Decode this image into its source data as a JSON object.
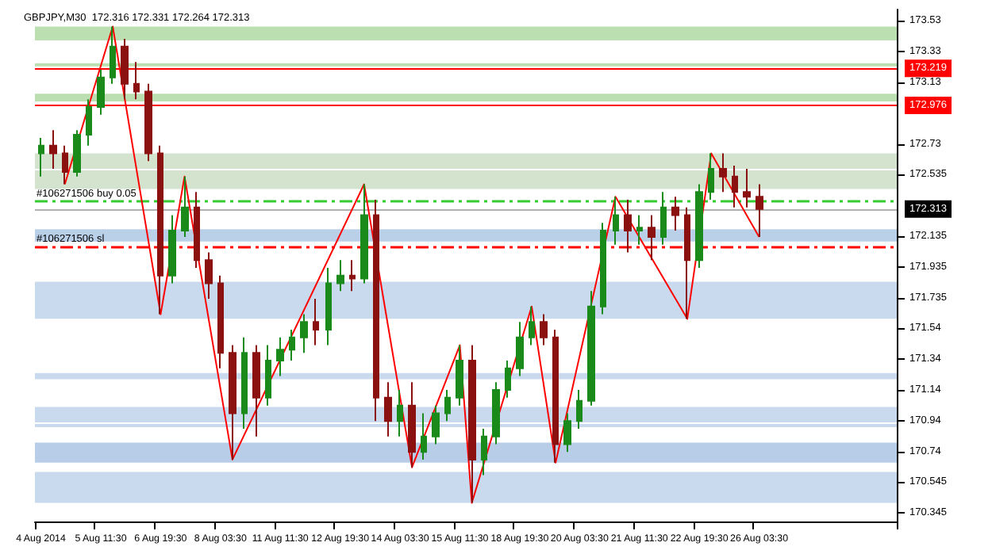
{
  "chart_data": {
    "type": "candlestick",
    "title": "GBPJPY,M30  172.316 172.331 172.264 172.313",
    "categories": [
      "4 Aug 2014",
      null,
      null,
      null,
      null,
      "5 Aug 11:30",
      null,
      null,
      null,
      null,
      "6 Aug 19:30",
      null,
      null,
      null,
      null,
      "8 Aug 03:30",
      null,
      null,
      null,
      null,
      "11 Aug 11:30",
      null,
      null,
      null,
      null,
      "12 Aug 19:30",
      null,
      null,
      null,
      null,
      "14 Aug 03:30",
      null,
      null,
      null,
      null,
      "15 Aug 11:30",
      null,
      null,
      null,
      null,
      "18 Aug 19:30",
      null,
      null,
      null,
      null,
      "20 Aug 03:30",
      null,
      null,
      null,
      null,
      "21 Aug 11:30",
      null,
      null,
      null,
      null,
      "22 Aug 19:30",
      null,
      null,
      null,
      null,
      "26 Aug 03:30",
      null,
      null,
      null,
      null,
      null,
      null,
      null,
      null,
      null,
      null,
      null
    ],
    "ohlc": [
      [
        172.67,
        172.77,
        172.52,
        172.72
      ],
      [
        172.72,
        172.82,
        172.57,
        172.67
      ],
      [
        172.67,
        172.72,
        172.47,
        172.55
      ],
      [
        172.55,
        172.82,
        172.52,
        172.79
      ],
      [
        172.79,
        173.02,
        172.72,
        172.97
      ],
      [
        172.97,
        173.21,
        172.92,
        173.16
      ],
      [
        173.16,
        173.49,
        173.12,
        173.36
      ],
      [
        173.36,
        173.41,
        173.02,
        173.12
      ],
      [
        173.12,
        173.26,
        173.02,
        173.07
      ],
      [
        173.07,
        173.12,
        172.62,
        172.67
      ],
      [
        172.67,
        172.72,
        171.63,
        171.88
      ],
      [
        171.88,
        172.27,
        171.83,
        172.17
      ],
      [
        172.17,
        172.52,
        172.13,
        172.32
      ],
      [
        172.32,
        172.42,
        171.93,
        171.98
      ],
      [
        171.98,
        172.03,
        171.73,
        171.83
      ],
      [
        171.83,
        171.88,
        171.28,
        171.38
      ],
      [
        171.38,
        171.43,
        170.69,
        170.99
      ],
      [
        170.99,
        171.48,
        170.89,
        171.38
      ],
      [
        171.38,
        171.43,
        170.84,
        171.09
      ],
      [
        171.09,
        171.43,
        171.04,
        171.33
      ],
      [
        171.33,
        171.48,
        171.23,
        171.4
      ],
      [
        171.4,
        171.53,
        171.33,
        171.48
      ],
      [
        171.48,
        171.63,
        171.38,
        171.58
      ],
      [
        171.58,
        171.73,
        171.43,
        171.53
      ],
      [
        171.53,
        171.93,
        171.43,
        171.83
      ],
      [
        171.83,
        171.98,
        171.78,
        171.88
      ],
      [
        171.88,
        171.98,
        171.78,
        171.86
      ],
      [
        171.86,
        172.47,
        171.83,
        172.27
      ],
      [
        172.27,
        172.37,
        170.94,
        171.09
      ],
      [
        171.09,
        171.19,
        170.84,
        170.94
      ],
      [
        170.94,
        171.14,
        170.84,
        171.04
      ],
      [
        171.04,
        171.19,
        170.64,
        170.74
      ],
      [
        170.74,
        170.99,
        170.69,
        170.84
      ],
      [
        170.84,
        171.04,
        170.79,
        170.99
      ],
      [
        170.99,
        171.14,
        170.94,
        171.09
      ],
      [
        171.09,
        171.43,
        171.04,
        171.33
      ],
      [
        171.33,
        171.43,
        170.41,
        170.69
      ],
      [
        170.69,
        170.89,
        170.59,
        170.84
      ],
      [
        170.84,
        171.19,
        170.79,
        171.14
      ],
      [
        171.14,
        171.33,
        171.09,
        171.28
      ],
      [
        171.28,
        171.58,
        171.23,
        171.48
      ],
      [
        171.48,
        171.68,
        171.43,
        171.58
      ],
      [
        171.58,
        171.63,
        171.43,
        171.48
      ],
      [
        171.48,
        171.53,
        170.67,
        170.79
      ],
      [
        170.79,
        170.99,
        170.74,
        170.94
      ],
      [
        170.94,
        171.14,
        170.89,
        171.07
      ],
      [
        171.07,
        171.78,
        171.04,
        171.68
      ],
      [
        171.68,
        172.22,
        171.63,
        172.17
      ],
      [
        172.17,
        172.39,
        172.08,
        172.27
      ],
      [
        172.27,
        172.37,
        172.03,
        172.17
      ],
      [
        172.17,
        172.27,
        172.08,
        172.19
      ],
      [
        172.19,
        172.27,
        171.98,
        172.13
      ],
      [
        172.13,
        172.42,
        172.08,
        172.32
      ],
      [
        172.32,
        172.39,
        172.17,
        172.27
      ],
      [
        172.27,
        172.32,
        171.6,
        171.98
      ],
      [
        171.98,
        172.47,
        171.93,
        172.42
      ],
      [
        172.42,
        172.67,
        172.37,
        172.57
      ],
      [
        172.57,
        172.67,
        172.42,
        172.52
      ],
      [
        172.52,
        172.59,
        172.32,
        172.42
      ],
      [
        172.42,
        172.57,
        172.32,
        172.39
      ],
      [
        172.39,
        172.47,
        172.13,
        172.31
      ],
      null,
      null,
      null,
      null,
      null,
      null,
      null,
      null,
      null,
      null,
      null
    ],
    "colors": [
      "#1a8a1a",
      "#8b1010",
      "#8b1010",
      "#1a8a1a",
      "#1a8a1a",
      "#1a8a1a",
      "#1a8a1a",
      "#8b1010",
      "#8b1010",
      "#8b1010",
      "#8b1010",
      "#1a8a1a",
      "#1a8a1a",
      "#8b1010",
      "#8b1010",
      "#8b1010",
      "#8b1010",
      "#1a8a1a",
      "#8b1010",
      "#1a8a1a",
      "#1a8a1a",
      "#1a8a1a",
      "#1a8a1a",
      "#8b1010",
      "#1a8a1a",
      "#1a8a1a",
      "#8b1010",
      "#1a8a1a",
      "#8b1010",
      "#8b1010",
      "#1a8a1a",
      "#8b1010",
      "#1a8a1a",
      "#1a8a1a",
      "#1a8a1a",
      "#1a8a1a",
      "#8b1010",
      "#1a8a1a",
      "#1a8a1a",
      "#1a8a1a",
      "#1a8a1a",
      "#1a8a1a",
      "#8b1010",
      "#8b1010",
      "#1a8a1a",
      "#1a8a1a",
      "#1a8a1a",
      "#1a8a1a",
      "#1a8a1a",
      "#8b1010",
      "#1a8a1a",
      "#8b1010",
      "#1a8a1a",
      "#8b1010",
      "#8b1010",
      "#1a8a1a",
      "#1a8a1a",
      "#8b1010",
      "#8b1010",
      "#8b1010",
      "#8b1010",
      null,
      null,
      null,
      null,
      null,
      null,
      null,
      null,
      null,
      null,
      null
    ],
    "series": [
      {
        "type": "line",
        "color": "#ff0000",
        "values": [
          null,
          null,
          172.47,
          null,
          null,
          null,
          173.49,
          null,
          null,
          null,
          171.63,
          null,
          172.52,
          null,
          null,
          null,
          170.69,
          null,
          null,
          null,
          null,
          null,
          null,
          null,
          null,
          null,
          null,
          172.47,
          null,
          null,
          null,
          170.64,
          null,
          null,
          null,
          171.43,
          170.41,
          null,
          null,
          null,
          null,
          171.68,
          null,
          170.67,
          null,
          null,
          null,
          null,
          172.39,
          null,
          null,
          null,
          null,
          null,
          171.6,
          null,
          172.67,
          null,
          null,
          null,
          172.13,
          null,
          null,
          null,
          null,
          null,
          null,
          null,
          null,
          null,
          null,
          null
        ]
      }
    ],
    "ylim": [
      170.29,
      173.6
    ],
    "yticks": [
      173.53,
      173.33,
      173.13,
      172.73,
      172.535,
      172.135,
      171.935,
      171.735,
      171.54,
      171.34,
      171.14,
      170.94,
      170.74,
      170.545,
      170.345
    ],
    "ref_lines": [
      {
        "axis": "y",
        "value": 173.219,
        "label": "173.219",
        "color": "#ff0000",
        "line_style": "solid"
      },
      {
        "axis": "y",
        "value": 172.976,
        "label": "172.976",
        "color": "#ff0000",
        "line_style": "solid"
      },
      {
        "axis": "y",
        "value": 172.313,
        "label": "172.313",
        "color": "#b0b0b0",
        "line_style": "solid"
      },
      {
        "axis": "y",
        "value": 172.36,
        "label": "#106271506 buy 0.05",
        "color": "#33cc33",
        "line_style": "dashed"
      },
      {
        "axis": "y",
        "value": 172.075,
        "label": "#106271506 sl",
        "color": "#ff0000",
        "line_style": "dashed"
      }
    ],
    "bands": [
      {
        "axis": "y",
        "from": 173.4,
        "to": 173.49,
        "color": "#b5dba8"
      },
      {
        "axis": "y",
        "from": 173.233,
        "to": 173.253,
        "color": "#b5dba8"
      },
      {
        "axis": "y",
        "from": 173.005,
        "to": 173.055,
        "color": "#b5dba8"
      },
      {
        "axis": "y",
        "from": 172.57,
        "to": 172.67,
        "color": "#cfe0c8"
      },
      {
        "axis": "y",
        "from": 172.44,
        "to": 172.56,
        "color": "#cfe0c8"
      },
      {
        "axis": "y",
        "from": 172.1,
        "to": 172.18,
        "color": "#b3cbe6"
      },
      {
        "axis": "y",
        "from": 171.6,
        "to": 171.84,
        "color": "#c3d6ec"
      },
      {
        "axis": "y",
        "from": 171.21,
        "to": 171.25,
        "color": "#c3d6ec"
      },
      {
        "axis": "y",
        "from": 170.93,
        "to": 171.03,
        "color": "#c3d6ec"
      },
      {
        "axis": "y",
        "from": 170.9,
        "to": 170.92,
        "color": "#c3d6ec"
      },
      {
        "axis": "y",
        "from": 170.67,
        "to": 170.8,
        "color": "#b0c8e4"
      },
      {
        "axis": "y",
        "from": 170.41,
        "to": 170.61,
        "color": "#c3d6ec"
      }
    ],
    "grid": false
  }
}
